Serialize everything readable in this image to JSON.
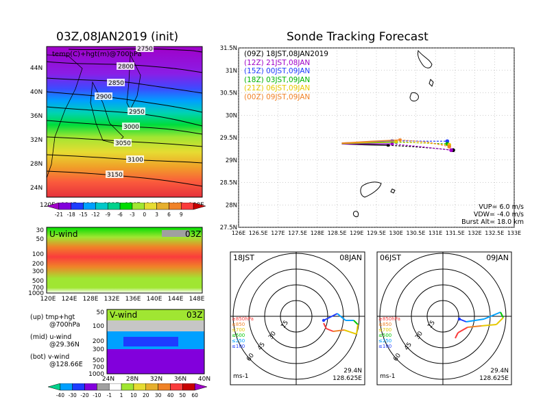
{
  "map_panel": {
    "title": "03Z,08JAN2019 (init)",
    "subtitle": "temp(C)+hgt(m)@700hPa",
    "lon_ticks": [
      "120E",
      "124E",
      "128E",
      "132E",
      "136E",
      "140E",
      "144E",
      "148E"
    ],
    "lat_ticks": [
      "44N",
      "40N",
      "36N",
      "32N",
      "28N",
      "24N"
    ],
    "contour_labels": [
      "2750",
      "2800",
      "2850",
      "2900",
      "2950",
      "3000",
      "3050",
      "3100",
      "3150"
    ],
    "colorbar_ticks": [
      "-21",
      "-18",
      "-15",
      "-12",
      "-9",
      "-6",
      "-3",
      "0",
      "3",
      "6",
      "9"
    ],
    "colorbar_colors": [
      "#a000c8",
      "#8200dc",
      "#1e3cff",
      "#00a0ff",
      "#00c8c8",
      "#00d28c",
      "#00dc00",
      "#a0e632",
      "#e6dc32",
      "#e6af2d",
      "#f08228",
      "#fa3c3c",
      "#c80000"
    ]
  },
  "uwind_panel": {
    "label": "U-wind",
    "time": "03Z",
    "p_ticks": [
      "30",
      "50",
      "100",
      "200",
      "300",
      "500",
      "700",
      "1000"
    ],
    "lon_ticks": [
      "120E",
      "124E",
      "128E",
      "132E",
      "136E",
      "140E",
      "144E",
      "148E"
    ]
  },
  "vwind_panel": {
    "label": "V-wind",
    "time": "03Z",
    "p_ticks": [
      "50",
      "100",
      "200",
      "300",
      "500",
      "700",
      "1000"
    ],
    "lat_ticks": [
      "24N",
      "28N",
      "32N",
      "36N",
      "40N"
    ],
    "colorbar_ticks": [
      "-40",
      "-30",
      "-20",
      "-10",
      "-1",
      "1",
      "10",
      "20",
      "30",
      "40",
      "50",
      "60"
    ],
    "colorbar_colors": [
      "#00d28c",
      "#00a0ff",
      "#1e3cff",
      "#8200dc",
      "#a0a0a0",
      "#ffffff",
      "#a0e632",
      "#e6dc32",
      "#e6af2d",
      "#f08228",
      "#fa3c3c",
      "#c80000",
      "#a000c8"
    ]
  },
  "notes": [
    {
      "line1": "(up) tmp+hgt",
      "line2": "@700hPa"
    },
    {
      "line1": "(mid) u-wind",
      "line2": "@29.36N"
    },
    {
      "line1": "(bot) v-wind",
      "line2": "@128.66E"
    }
  ],
  "track_panel": {
    "title": "Sonde Tracking Forecast",
    "lat_ticks": [
      "31.5N",
      "31N",
      "30.5N",
      "30N",
      "29.5N",
      "29N",
      "28.5N",
      "28N",
      "27.5N"
    ],
    "lon_ticks": [
      "126E",
      "126.5E",
      "127E",
      "127.5E",
      "128E",
      "128.5E",
      "129E",
      "129.5E",
      "130E",
      "130.5E",
      "131E",
      "131.5E",
      "132E",
      "132.5E",
      "133E"
    ],
    "legend": [
      {
        "label": "(09Z)  18JST,08JAN2019",
        "color": "#000000"
      },
      {
        "label": "(12Z)  21JST,08JAN",
        "color": "#a000c8"
      },
      {
        "label": "(15Z)  00JST,09JAN",
        "color": "#1e3cff"
      },
      {
        "label": "(18Z)  03JST,09JAN",
        "color": "#00b400"
      },
      {
        "label": "(21Z)  06JST,09JAN",
        "color": "#e6c800"
      },
      {
        "label": "(00Z)  09JST,09JAN",
        "color": "#f08228"
      }
    ],
    "params": [
      "VUP=  6.0  m/s",
      "VDW= -4.0  m/s",
      "Burst Alt=  18.0  km"
    ]
  },
  "hodo_left": {
    "time": "18JST",
    "date": "08JAN",
    "lat": "29.4N",
    "lon": "128.625E",
    "unit": "ms-1",
    "ring_labels": [
      "15",
      "30",
      "45",
      "60"
    ],
    "levels": [
      {
        "label": "≥850hPa",
        "color": "#fa3c3c"
      },
      {
        "label": "≤850",
        "color": "#f08228"
      },
      {
        "label": "≤700",
        "color": "#e6c800"
      },
      {
        "label": "≤500",
        "color": "#00c800"
      },
      {
        "label": "≤250",
        "color": "#00a0ff"
      },
      {
        "label": "≤100",
        "color": "#1e3cff"
      }
    ]
  },
  "hodo_right": {
    "time": "06JST",
    "date": "09JAN",
    "lat": "29.4N",
    "lon": "128.625E",
    "unit": "ms-1",
    "ring_labels": [
      "15",
      "30",
      "45",
      "60"
    ],
    "levels": [
      {
        "label": "≥850hPa",
        "color": "#fa3c3c"
      },
      {
        "label": "≤850",
        "color": "#f08228"
      },
      {
        "label": "≤700",
        "color": "#e6c800"
      },
      {
        "label": "≤500",
        "color": "#00c800"
      },
      {
        "label": "≤250",
        "color": "#00a0ff"
      },
      {
        "label": "≤100",
        "color": "#1e3cff"
      }
    ]
  },
  "chart_data": [
    {
      "type": "heatmap",
      "title": "03Z,08JAN2019 (init)",
      "subtitle": "temp(C)+hgt(m)@700hPa",
      "xlim": [
        120,
        150
      ],
      "ylim": [
        22,
        47
      ],
      "contours_m": [
        2750,
        2800,
        2850,
        2900,
        2950,
        3000,
        3050,
        3100,
        3150
      ],
      "colorbar": [
        -21,
        -18,
        -15,
        -12,
        -9,
        -6,
        -3,
        0,
        3,
        6,
        9
      ]
    },
    {
      "type": "heatmap",
      "title": "U-wind",
      "x_ticks": [
        "120E",
        "124E",
        "128E",
        "132E",
        "136E",
        "140E",
        "144E",
        "148E"
      ],
      "y_ticks_hPa": [
        30,
        50,
        100,
        200,
        300,
        500,
        700,
        1000
      ]
    },
    {
      "type": "heatmap",
      "title": "V-wind",
      "x_ticks": [
        "24N",
        "28N",
        "32N",
        "36N",
        "40N"
      ],
      "y_ticks_hPa": [
        50,
        100,
        200,
        300,
        500,
        700,
        1000
      ],
      "colorbar": [
        -40,
        -30,
        -20,
        -10,
        -1,
        1,
        10,
        20,
        30,
        40,
        50,
        60
      ]
    },
    {
      "type": "line",
      "title": "Sonde Tracking Forecast",
      "xlim": [
        126,
        133
      ],
      "ylim": [
        27.5,
        31.5
      ],
      "series": [
        {
          "name": "(09Z)  18JST,08JAN2019",
          "x": [
            128.62,
            129.2,
            129.8,
            130.4,
            131.0,
            131.45
          ],
          "y": [
            29.36,
            29.34,
            29.33,
            29.3,
            29.26,
            29.22
          ]
        },
        {
          "name": "(12Z)  21JST,08JAN",
          "x": [
            128.62,
            129.3,
            129.9,
            130.6,
            131.2,
            131.4
          ],
          "y": [
            29.36,
            29.36,
            29.36,
            29.3,
            29.24,
            29.22
          ]
        },
        {
          "name": "(15Z)  00JST,09JAN",
          "x": [
            128.62,
            129.3,
            129.9,
            130.7,
            131.3
          ],
          "y": [
            29.38,
            29.4,
            29.43,
            29.42,
            29.42
          ]
        },
        {
          "name": "(18Z)  03JST,09JAN",
          "x": [
            128.62,
            129.3,
            130.0,
            130.7,
            131.3
          ],
          "y": [
            29.37,
            29.38,
            29.4,
            29.38,
            29.36
          ]
        },
        {
          "name": "(21Z)  06JST,09JAN",
          "x": [
            128.62,
            129.3,
            130.0,
            130.7,
            131.35
          ],
          "y": [
            29.37,
            29.39,
            29.41,
            29.38,
            29.34
          ]
        },
        {
          "name": "(00Z)  09JST,09JAN",
          "x": [
            128.62,
            129.4,
            130.1,
            130.8,
            131.35
          ],
          "y": [
            29.38,
            29.42,
            29.45,
            29.4,
            29.3
          ]
        }
      ],
      "annotations": [
        "VUP=  6.0  m/s",
        "VDW= -4.0  m/s",
        "Burst Alt=  18.0  km"
      ]
    }
  ]
}
